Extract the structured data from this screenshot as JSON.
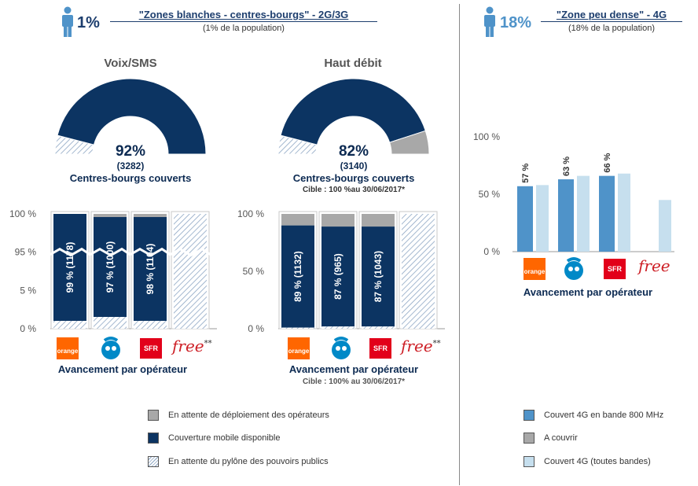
{
  "header_left": {
    "percent": "1%",
    "title": "\"Zones blanches - centres-bourgs\" - 2G/3G",
    "subtitle": "(1% de la population)"
  },
  "header_right": {
    "percent": "18%",
    "title": "\"Zone peu dense\" - 4G",
    "subtitle": "(18% de la population)"
  },
  "colors": {
    "dark": "#0c3462",
    "gray": "#a8a8a8",
    "hatch": "#8da6c4",
    "blue_4g": "#4f93c9",
    "light_4g": "#c6dfee",
    "title": "#1d3e6e"
  },
  "voix": {
    "section_title": "Voix/SMS",
    "donut_pct": "92%",
    "donut_count": "(3282)",
    "donut_caption": "Centres-bourgs couverts",
    "avancement": "Avancement par opérateur",
    "y_ticks": [
      "100 %",
      "95 %",
      "5 %",
      "0 %"
    ]
  },
  "haut": {
    "section_title": "Haut débit",
    "donut_pct": "82%",
    "donut_count": "(3140)",
    "donut_caption": "Centres-bourgs couverts",
    "donut_cible": "Cible : 100 %au 30/06/2017*",
    "avancement": "Avancement par opérateur",
    "avancement_cible": "Cible : 100% au 30/06/2017*",
    "y_ticks": [
      "100 %",
      "50 %",
      "0 %"
    ]
  },
  "peu_dense": {
    "avancement": "Avancement par opérateur",
    "y_ticks": [
      "100 %",
      "50 %",
      "0 %"
    ]
  },
  "operators": {
    "orange": "orange",
    "bouygues": "",
    "sfr": "SFR",
    "free": "free",
    "free_mark": "**"
  },
  "legend_left": [
    "En attente de déploiement des opérateurs",
    "Couverture mobile disponible",
    "En attente du pylône des pouvoirs publics"
  ],
  "legend_right": [
    "Couvert 4G en bande 800 MHz",
    "A couvrir",
    "Couvert 4G (toutes bandes)"
  ],
  "chart_data": [
    {
      "type": "pie",
      "title": "Voix/SMS",
      "slices": [
        {
          "label": "Centres-bourgs couverts",
          "value": 92,
          "count": 3282
        },
        {
          "label": "En attente du pylône des pouvoirs publics",
          "value": 8
        }
      ]
    },
    {
      "type": "pie",
      "title": "Haut débit",
      "slices": [
        {
          "label": "Centres-bourgs couverts",
          "value": 82,
          "count": 3140
        },
        {
          "label": "En attente du pylône des pouvoirs publics",
          "value": 8
        },
        {
          "label": "En attente de déploiement des opérateurs",
          "value": 10
        }
      ]
    },
    {
      "type": "bar",
      "title": "Voix/SMS - Avancement par opérateur",
      "categories": [
        "Orange",
        "Bouygues Telecom",
        "SFR",
        "Free"
      ],
      "ylim": [
        0,
        100
      ],
      "series": [
        {
          "name": "Couverture mobile disponible",
          "values": [
            99,
            97,
            98,
            0
          ],
          "labels": [
            "99 % (1178)",
            "97 % (1000)",
            "98 % (1104)",
            ""
          ]
        },
        {
          "name": "En attente de déploiement des opérateurs",
          "values": [
            0,
            1,
            1,
            0
          ]
        },
        {
          "name": "En attente du pylône des pouvoirs publics",
          "values": [
            1,
            2,
            1,
            100
          ]
        }
      ]
    },
    {
      "type": "bar",
      "title": "Haut débit - Avancement par opérateur",
      "categories": [
        "Orange",
        "Bouygues Telecom",
        "SFR",
        "Free"
      ],
      "ylim": [
        0,
        100
      ],
      "series": [
        {
          "name": "Couverture mobile disponible",
          "values": [
            89,
            87,
            87,
            0
          ],
          "labels": [
            "89 % (1132)",
            "87 % (965)",
            "87 % (1043)",
            ""
          ]
        },
        {
          "name": "En attente de déploiement des opérateurs",
          "values": [
            10,
            11,
            11,
            0
          ]
        },
        {
          "name": "En attente du pylône des pouvoirs publics",
          "values": [
            1,
            2,
            2,
            100
          ]
        }
      ]
    },
    {
      "type": "bar",
      "title": "Zone peu dense - Avancement par opérateur",
      "categories": [
        "Orange",
        "Bouygues Telecom",
        "SFR",
        "Free"
      ],
      "ylim": [
        0,
        100
      ],
      "series": [
        {
          "name": "Couvert 4G en bande 800 MHz",
          "values": [
            57,
            63,
            66,
            0
          ],
          "labels": [
            "57 %",
            "63 %",
            "66 %",
            ""
          ]
        },
        {
          "name": "Couvert 4G (toutes bandes)",
          "values": [
            58,
            66,
            68,
            45
          ]
        }
      ]
    }
  ]
}
